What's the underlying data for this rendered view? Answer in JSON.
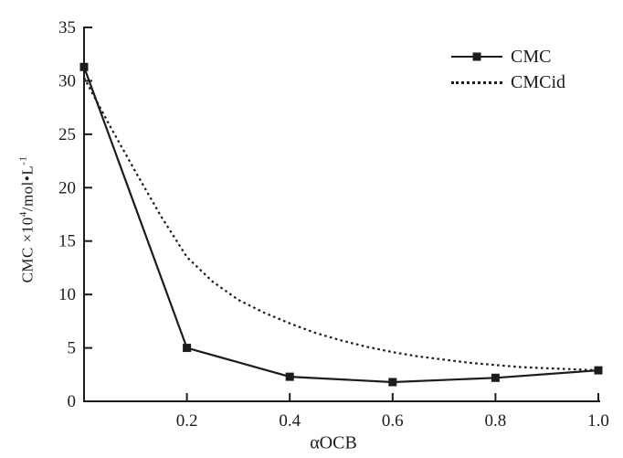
{
  "page": {
    "background": "#ffffff",
    "ink_color": "#1c1c1c"
  },
  "chart_data": {
    "type": "line",
    "title": "",
    "xlabel": "αOCB",
    "ylabel": "CMC ×10⁴/mol•L⁻¹",
    "ylabel_parts": {
      "prefix": "CMC ×10",
      "sup1": "4",
      "mid": "/mol•L",
      "sup2": "-1"
    },
    "xlim": [
      0,
      1.0
    ],
    "ylim": [
      0,
      35
    ],
    "xticks": [
      0.2,
      0.4,
      0.6,
      0.8,
      1.0
    ],
    "xtick_labels": [
      "0.2",
      "0.4",
      "0.6",
      "0.8",
      "1.0"
    ],
    "yticks": [
      0,
      5,
      10,
      15,
      20,
      25,
      30,
      35
    ],
    "ytick_labels": [
      "0",
      "5",
      "10",
      "15",
      "20",
      "25",
      "30",
      "35"
    ],
    "grid": false,
    "legend_position": "top-right",
    "axis_color": "#1c1c1c",
    "series": [
      {
        "name": "CMC",
        "style": "solid",
        "marker": "square",
        "x": [
          0,
          0.2,
          0.4,
          0.6,
          0.8,
          1.0
        ],
        "y": [
          31.3,
          5.0,
          2.3,
          1.8,
          2.2,
          2.9
        ]
      },
      {
        "name": "CMCid",
        "style": "dotted",
        "marker": "none",
        "x": [
          0,
          0.05,
          0.1,
          0.15,
          0.2,
          0.25,
          0.3,
          0.35,
          0.4,
          0.45,
          0.5,
          0.55,
          0.6,
          0.65,
          0.7,
          0.75,
          0.8,
          0.85,
          0.9,
          0.95,
          1.0
        ],
        "y": [
          30.3,
          25.8,
          21.5,
          17.3,
          13.5,
          11.2,
          9.5,
          8.3,
          7.3,
          6.4,
          5.7,
          5.1,
          4.6,
          4.2,
          3.9,
          3.6,
          3.4,
          3.2,
          3.1,
          3.0,
          2.9
        ]
      }
    ]
  },
  "legend": {
    "items": [
      {
        "label": "CMC",
        "line": "solid",
        "marker": "square"
      },
      {
        "label": "CMCid",
        "line": "dotted",
        "marker": "none"
      }
    ]
  }
}
